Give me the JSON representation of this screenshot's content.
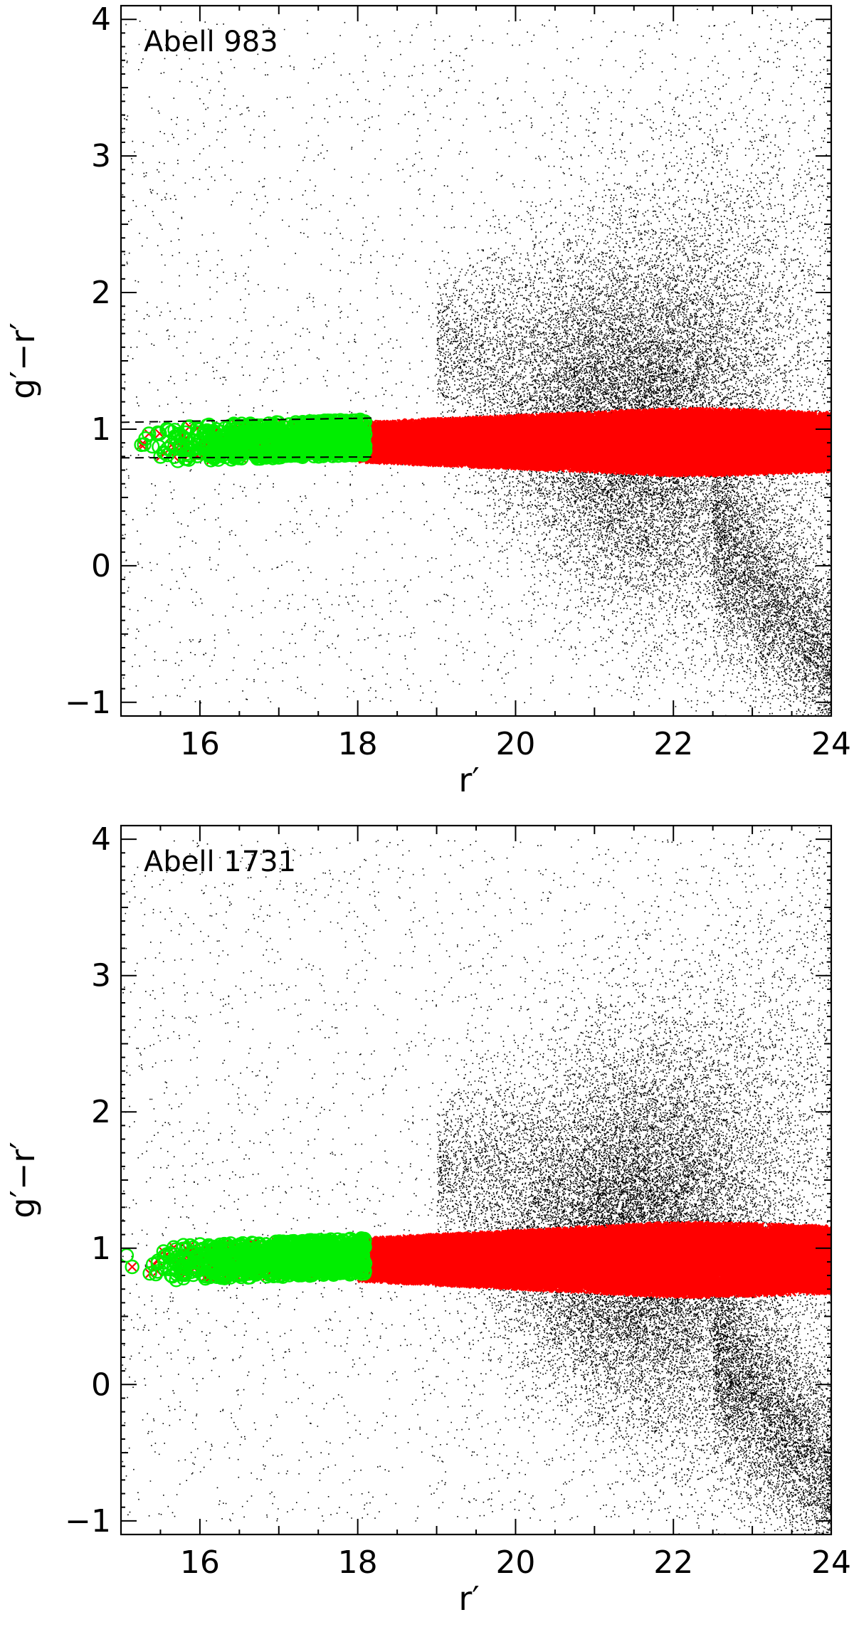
{
  "chart_data": [
    {
      "type": "scatter",
      "title": "Abell 983",
      "xlabel": "r′",
      "ylabel": "g′−r′",
      "xlim": [
        15,
        24
      ],
      "ylim": [
        -1.1,
        4.1
      ],
      "xticks": [
        16,
        18,
        20,
        22,
        24
      ],
      "yticks": [
        -1,
        0,
        1,
        2,
        3,
        4
      ],
      "xtick_labels": [
        "16",
        "18",
        "20",
        "22",
        "24"
      ],
      "ytick_labels": [
        "−1",
        "0",
        "1",
        "2",
        "3",
        "4"
      ],
      "red_sequence": {
        "r_min": 15.0,
        "r_max": 24.0,
        "color_lo": 0.78,
        "color_hi": 1.03,
        "width_growth": 0.1,
        "dashed_lines": [
          0.79,
          1.05
        ],
        "dashed_r_range": [
          15.0,
          18.0
        ]
      },
      "green_members_r_range": [
        15.1,
        18.1
      ],
      "field_stars_density": 28000,
      "colors": {
        "background_points": "#000000",
        "red_sequence": "#ff0000",
        "members": "#00ee00"
      }
    },
    {
      "type": "scatter",
      "title": "Abell 1731",
      "xlabel": "r′",
      "ylabel": "g′−r′",
      "xlim": [
        15,
        24
      ],
      "ylim": [
        -1.1,
        4.1
      ],
      "xticks": [
        16,
        18,
        20,
        22,
        24
      ],
      "yticks": [
        -1,
        0,
        1,
        2,
        3,
        4
      ],
      "xtick_labels": [
        "16",
        "18",
        "20",
        "22",
        "24"
      ],
      "ytick_labels": [
        "−1",
        "0",
        "1",
        "2",
        "3",
        "4"
      ],
      "red_sequence": {
        "r_min": 15.0,
        "r_max": 24.0,
        "color_lo": 0.78,
        "color_hi": 1.05,
        "width_growth": 0.12,
        "dashed_lines": [],
        "dashed_r_range": [
          15.0,
          18.0
        ]
      },
      "green_members_r_range": [
        15.0,
        18.1
      ],
      "field_stars_density": 32000,
      "colors": {
        "background_points": "#000000",
        "red_sequence": "#ff0000",
        "members": "#00ee00"
      }
    }
  ]
}
